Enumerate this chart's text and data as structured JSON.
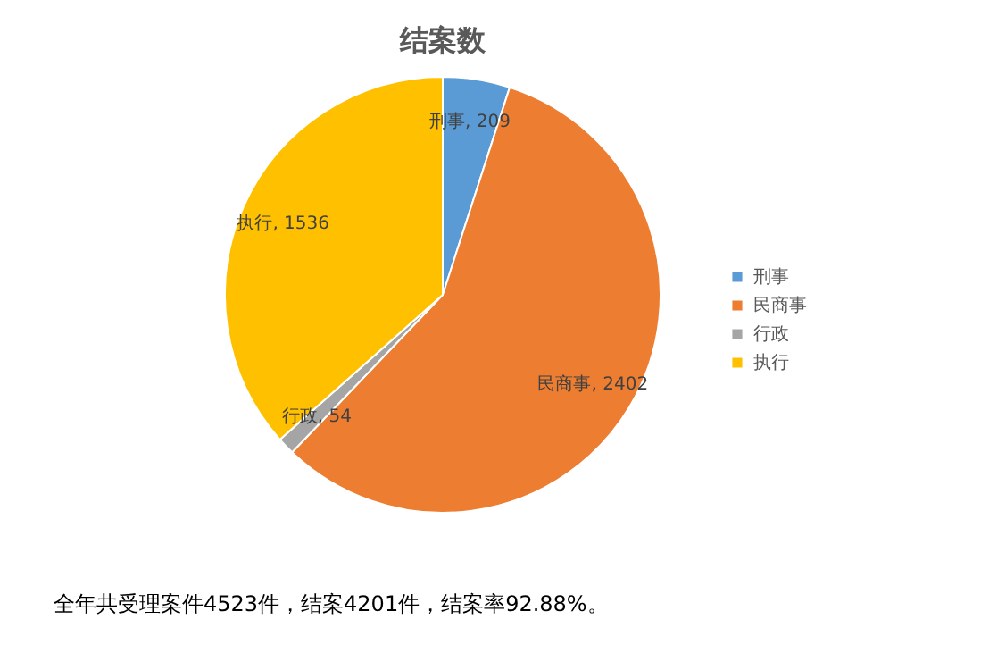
{
  "chart_data": {
    "type": "pie",
    "title": "结案数",
    "categories": [
      "刑事",
      "民商事",
      "行政",
      "执行"
    ],
    "values": [
      209,
      2402,
      54,
      1536
    ],
    "colors": [
      "#5b9bd5",
      "#ed7d31",
      "#a5a5a5",
      "#ffc000"
    ],
    "value_labels": [
      "刑事, 209",
      "民商事, 2402",
      "行政, 54",
      "执行, 1536"
    ],
    "legend": "right",
    "annotations": [
      "全年共受理案件4523件，结案4201件，结案率92.88%。"
    ]
  }
}
